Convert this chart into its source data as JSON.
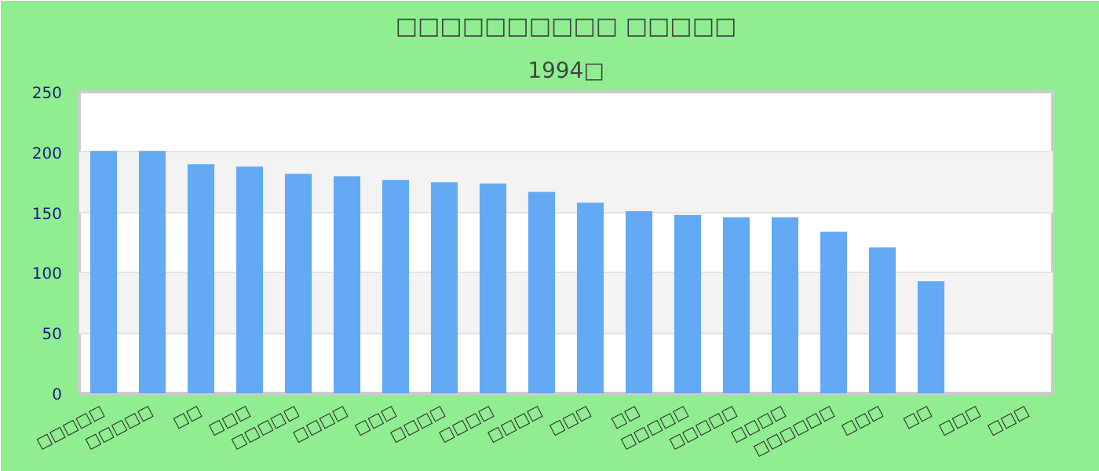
{
  "chart_data": {
    "type": "bar",
    "title": "□□□□□□□□□□ □□□□□",
    "subtitle": "1994□",
    "categories": [
      "□□□□□",
      "□□□□□",
      "□□",
      "□□□",
      "□□□□□",
      "□□□□",
      "□□□",
      "□□□□",
      "□□□□",
      "□□□□",
      "□□□",
      "□□",
      "□□□□□",
      "□□□□□",
      "□□□□",
      "□□□□□□",
      "□□□",
      "□□",
      "□□□",
      "□□□"
    ],
    "values": [
      201,
      201,
      190,
      188,
      182,
      180,
      177,
      175,
      174,
      167,
      158,
      151,
      148,
      146,
      146,
      134,
      121,
      93,
      null,
      null
    ],
    "color": "#63a9f3",
    "ylim": [
      0,
      250
    ],
    "yticks": [
      0,
      50,
      100,
      150,
      200,
      250
    ],
    "grid": "y"
  }
}
